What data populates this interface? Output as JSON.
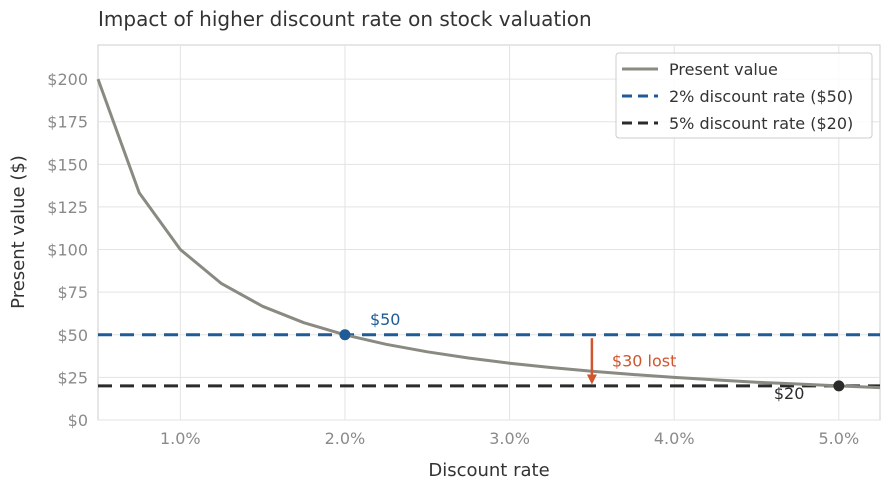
{
  "chart_data": {
    "type": "line",
    "title": "Impact of higher discount rate on stock valuation",
    "xlabel": "Discount rate",
    "ylabel": "Present value ($)",
    "xlim": [
      0.5,
      5.25
    ],
    "ylim": [
      0,
      220
    ],
    "grid": true,
    "legend_position": "top-right",
    "x_ticks": [
      1.0,
      2.0,
      3.0,
      4.0,
      5.0
    ],
    "x_tick_labels": [
      "1.0%",
      "2.0%",
      "3.0%",
      "4.0%",
      "5.0%"
    ],
    "y_ticks": [
      0,
      25,
      50,
      75,
      100,
      125,
      150,
      175,
      200
    ],
    "y_tick_labels": [
      "$0",
      "$25",
      "$50",
      "$75",
      "$100",
      "$125",
      "$150",
      "$175",
      "$200"
    ],
    "series": [
      {
        "name": "Present value",
        "color": "#8a8a82",
        "style": "solid",
        "x": [
          0.5,
          0.75,
          1.0,
          1.25,
          1.5,
          1.75,
          2.0,
          2.25,
          2.5,
          2.75,
          3.0,
          3.25,
          3.5,
          3.75,
          4.0,
          4.25,
          4.5,
          4.75,
          5.0,
          5.25
        ],
        "y": [
          200,
          133.3,
          100,
          80,
          66.7,
          57.1,
          50,
          44.4,
          40,
          36.4,
          33.3,
          30.8,
          28.6,
          26.7,
          25,
          23.5,
          22.2,
          21.1,
          20,
          19.0
        ]
      }
    ],
    "reference_lines": [
      {
        "name": "2% discount rate  ($50)",
        "y": 50,
        "color": "#1f5b96",
        "style": "dashed"
      },
      {
        "name": "5% discount rate  ($20)",
        "y": 20,
        "color": "#2b2b2b",
        "style": "dashed"
      }
    ],
    "markers": [
      {
        "x": 2.0,
        "y": 50,
        "color": "#1f5b96",
        "label": "$50"
      },
      {
        "x": 5.0,
        "y": 20,
        "color": "#2b2b2b",
        "label": "$20"
      }
    ],
    "arrow": {
      "x": 3.5,
      "y_from": 48,
      "y_to": 22,
      "color": "#d0562e",
      "label": "$30 lost"
    }
  }
}
